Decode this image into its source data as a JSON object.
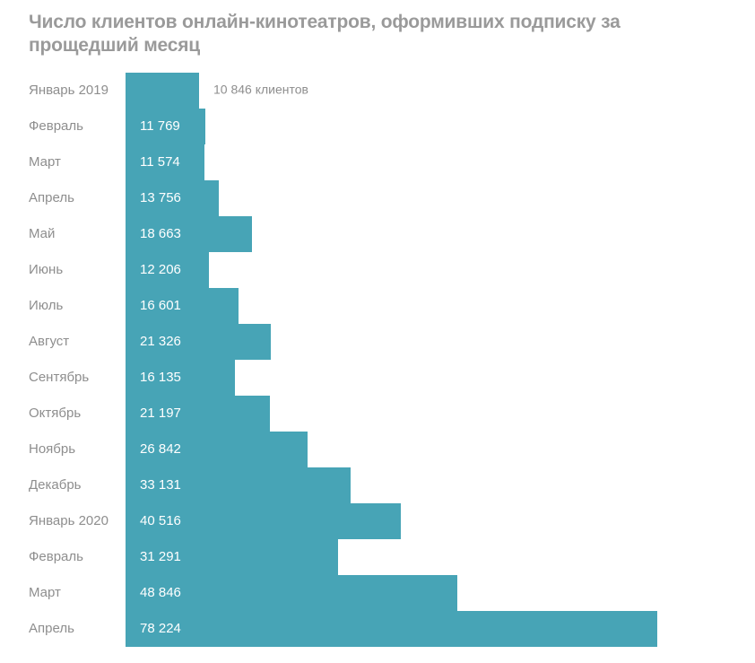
{
  "chart_data": {
    "type": "bar",
    "orientation": "horizontal",
    "title": "Число клиентов онлайн-кинотеатров, оформивших подписку за прощедший месяц",
    "categories": [
      "Январь 2019",
      "Февраль",
      "Март",
      "Апрель",
      "Май",
      "Июнь",
      "Июль",
      "Август",
      "Сентябрь",
      "Октябрь",
      "Ноябрь",
      "Декабрь",
      "Январь 2020",
      "Февраль",
      "Март",
      "Апрель"
    ],
    "values": [
      10846,
      11769,
      11574,
      13756,
      18663,
      12206,
      16601,
      21326,
      16135,
      21197,
      26842,
      33131,
      40516,
      31291,
      48846,
      78224
    ],
    "value_labels": [
      "10 846 клиентов",
      "11 769",
      "11 574",
      "13 756",
      "18 663",
      "12 206",
      "16 601",
      "21 326",
      "16 135",
      "21 197",
      "26 842",
      "33 131",
      "40 516",
      "31 291",
      "48 846",
      "78 224"
    ],
    "xlabel": "",
    "ylabel": "",
    "xlim": [
      0,
      78224
    ],
    "grid": false,
    "bar_color": "#47a4b6",
    "title_color": "#9a9a9a",
    "label_color": "#8e8e8e",
    "value_label_inside_color": "#ffffff"
  }
}
